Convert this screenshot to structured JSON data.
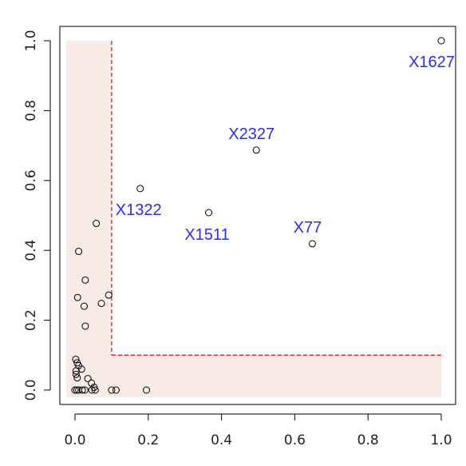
{
  "chart_data": {
    "type": "scatter",
    "title": "",
    "xlabel": "",
    "ylabel": "",
    "xlim": [
      0,
      1
    ],
    "ylim": [
      0,
      1
    ],
    "x_ticks": [
      "0.0",
      "0.2",
      "0.4",
      "0.6",
      "0.8",
      "1.0"
    ],
    "y_ticks": [
      "0.0",
      "0.2",
      "0.4",
      "0.6",
      "0.8",
      "1.0"
    ],
    "grid": false,
    "threshold": 0.1,
    "colors": {
      "points": "#000000",
      "labels": "#2b2bff",
      "threshold_line": "#e41a1c",
      "shaded_region": "#f9ebe6"
    },
    "points": [
      {
        "x": 1.0,
        "y": 1.0,
        "label": "X1627"
      },
      {
        "x": 0.495,
        "y": 0.687,
        "label": "X2327"
      },
      {
        "x": 0.178,
        "y": 0.577,
        "label": "X1322"
      },
      {
        "x": 0.365,
        "y": 0.508,
        "label": "X1511"
      },
      {
        "x": 0.648,
        "y": 0.419,
        "label": "X77"
      },
      {
        "x": 0.058,
        "y": 0.477
      },
      {
        "x": 0.01,
        "y": 0.397
      },
      {
        "x": 0.028,
        "y": 0.315
      },
      {
        "x": 0.007,
        "y": 0.265
      },
      {
        "x": 0.092,
        "y": 0.272
      },
      {
        "x": 0.072,
        "y": 0.248
      },
      {
        "x": 0.025,
        "y": 0.24
      },
      {
        "x": 0.028,
        "y": 0.183
      },
      {
        "x": 0.002,
        "y": 0.088
      },
      {
        "x": 0.006,
        "y": 0.078
      },
      {
        "x": 0.01,
        "y": 0.07
      },
      {
        "x": 0.018,
        "y": 0.06
      },
      {
        "x": 0.003,
        "y": 0.055
      },
      {
        "x": 0.003,
        "y": 0.045
      },
      {
        "x": 0.006,
        "y": 0.035
      },
      {
        "x": 0.035,
        "y": 0.033
      },
      {
        "x": 0.045,
        "y": 0.02
      },
      {
        "x": 0.052,
        "y": 0.008
      },
      {
        "x": 0.0,
        "y": 0.0
      },
      {
        "x": 0.005,
        "y": 0.0
      },
      {
        "x": 0.01,
        "y": 0.0
      },
      {
        "x": 0.02,
        "y": 0.0
      },
      {
        "x": 0.027,
        "y": 0.0
      },
      {
        "x": 0.046,
        "y": 0.0
      },
      {
        "x": 0.055,
        "y": 0.0
      },
      {
        "x": 0.1,
        "y": 0.0
      },
      {
        "x": 0.112,
        "y": 0.0
      },
      {
        "x": 0.195,
        "y": 0.0
      }
    ]
  }
}
